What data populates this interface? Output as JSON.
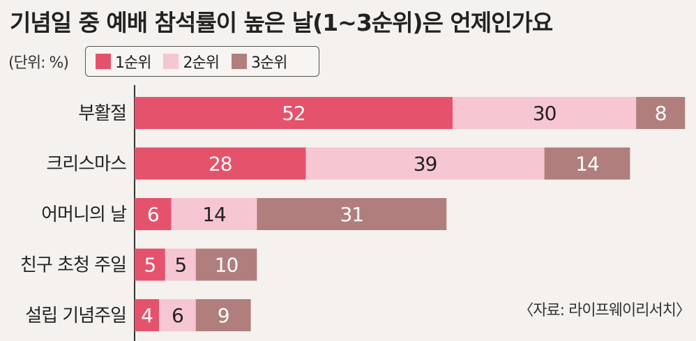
{
  "title": "기념일 중 예배 참석률이 높은 날(1~3순위)은 언제인가요",
  "unit_label": "(단위: %)",
  "source": "〈자료: 라이프웨이리서치〉",
  "colors": {
    "rank1": "#e5526c",
    "rank2": "#f7c6d3",
    "rank3": "#b07f7d",
    "axis": "#333333"
  },
  "chart_data": {
    "type": "bar",
    "orientation": "horizontal",
    "stacked": true,
    "categories": [
      "부활절",
      "크리스마스",
      "어머니의 날",
      "친구 초청 주일",
      "설립 기념주일"
    ],
    "series": [
      {
        "name": "1순위",
        "values": [
          52,
          28,
          6,
          5,
          4
        ]
      },
      {
        "name": "2순위",
        "values": [
          30,
          39,
          14,
          5,
          6
        ]
      },
      {
        "name": "3순위",
        "values": [
          8,
          14,
          31,
          10,
          9
        ]
      }
    ],
    "xlim": [
      0,
      90
    ],
    "legend_position": "top-left",
    "grid": false
  }
}
